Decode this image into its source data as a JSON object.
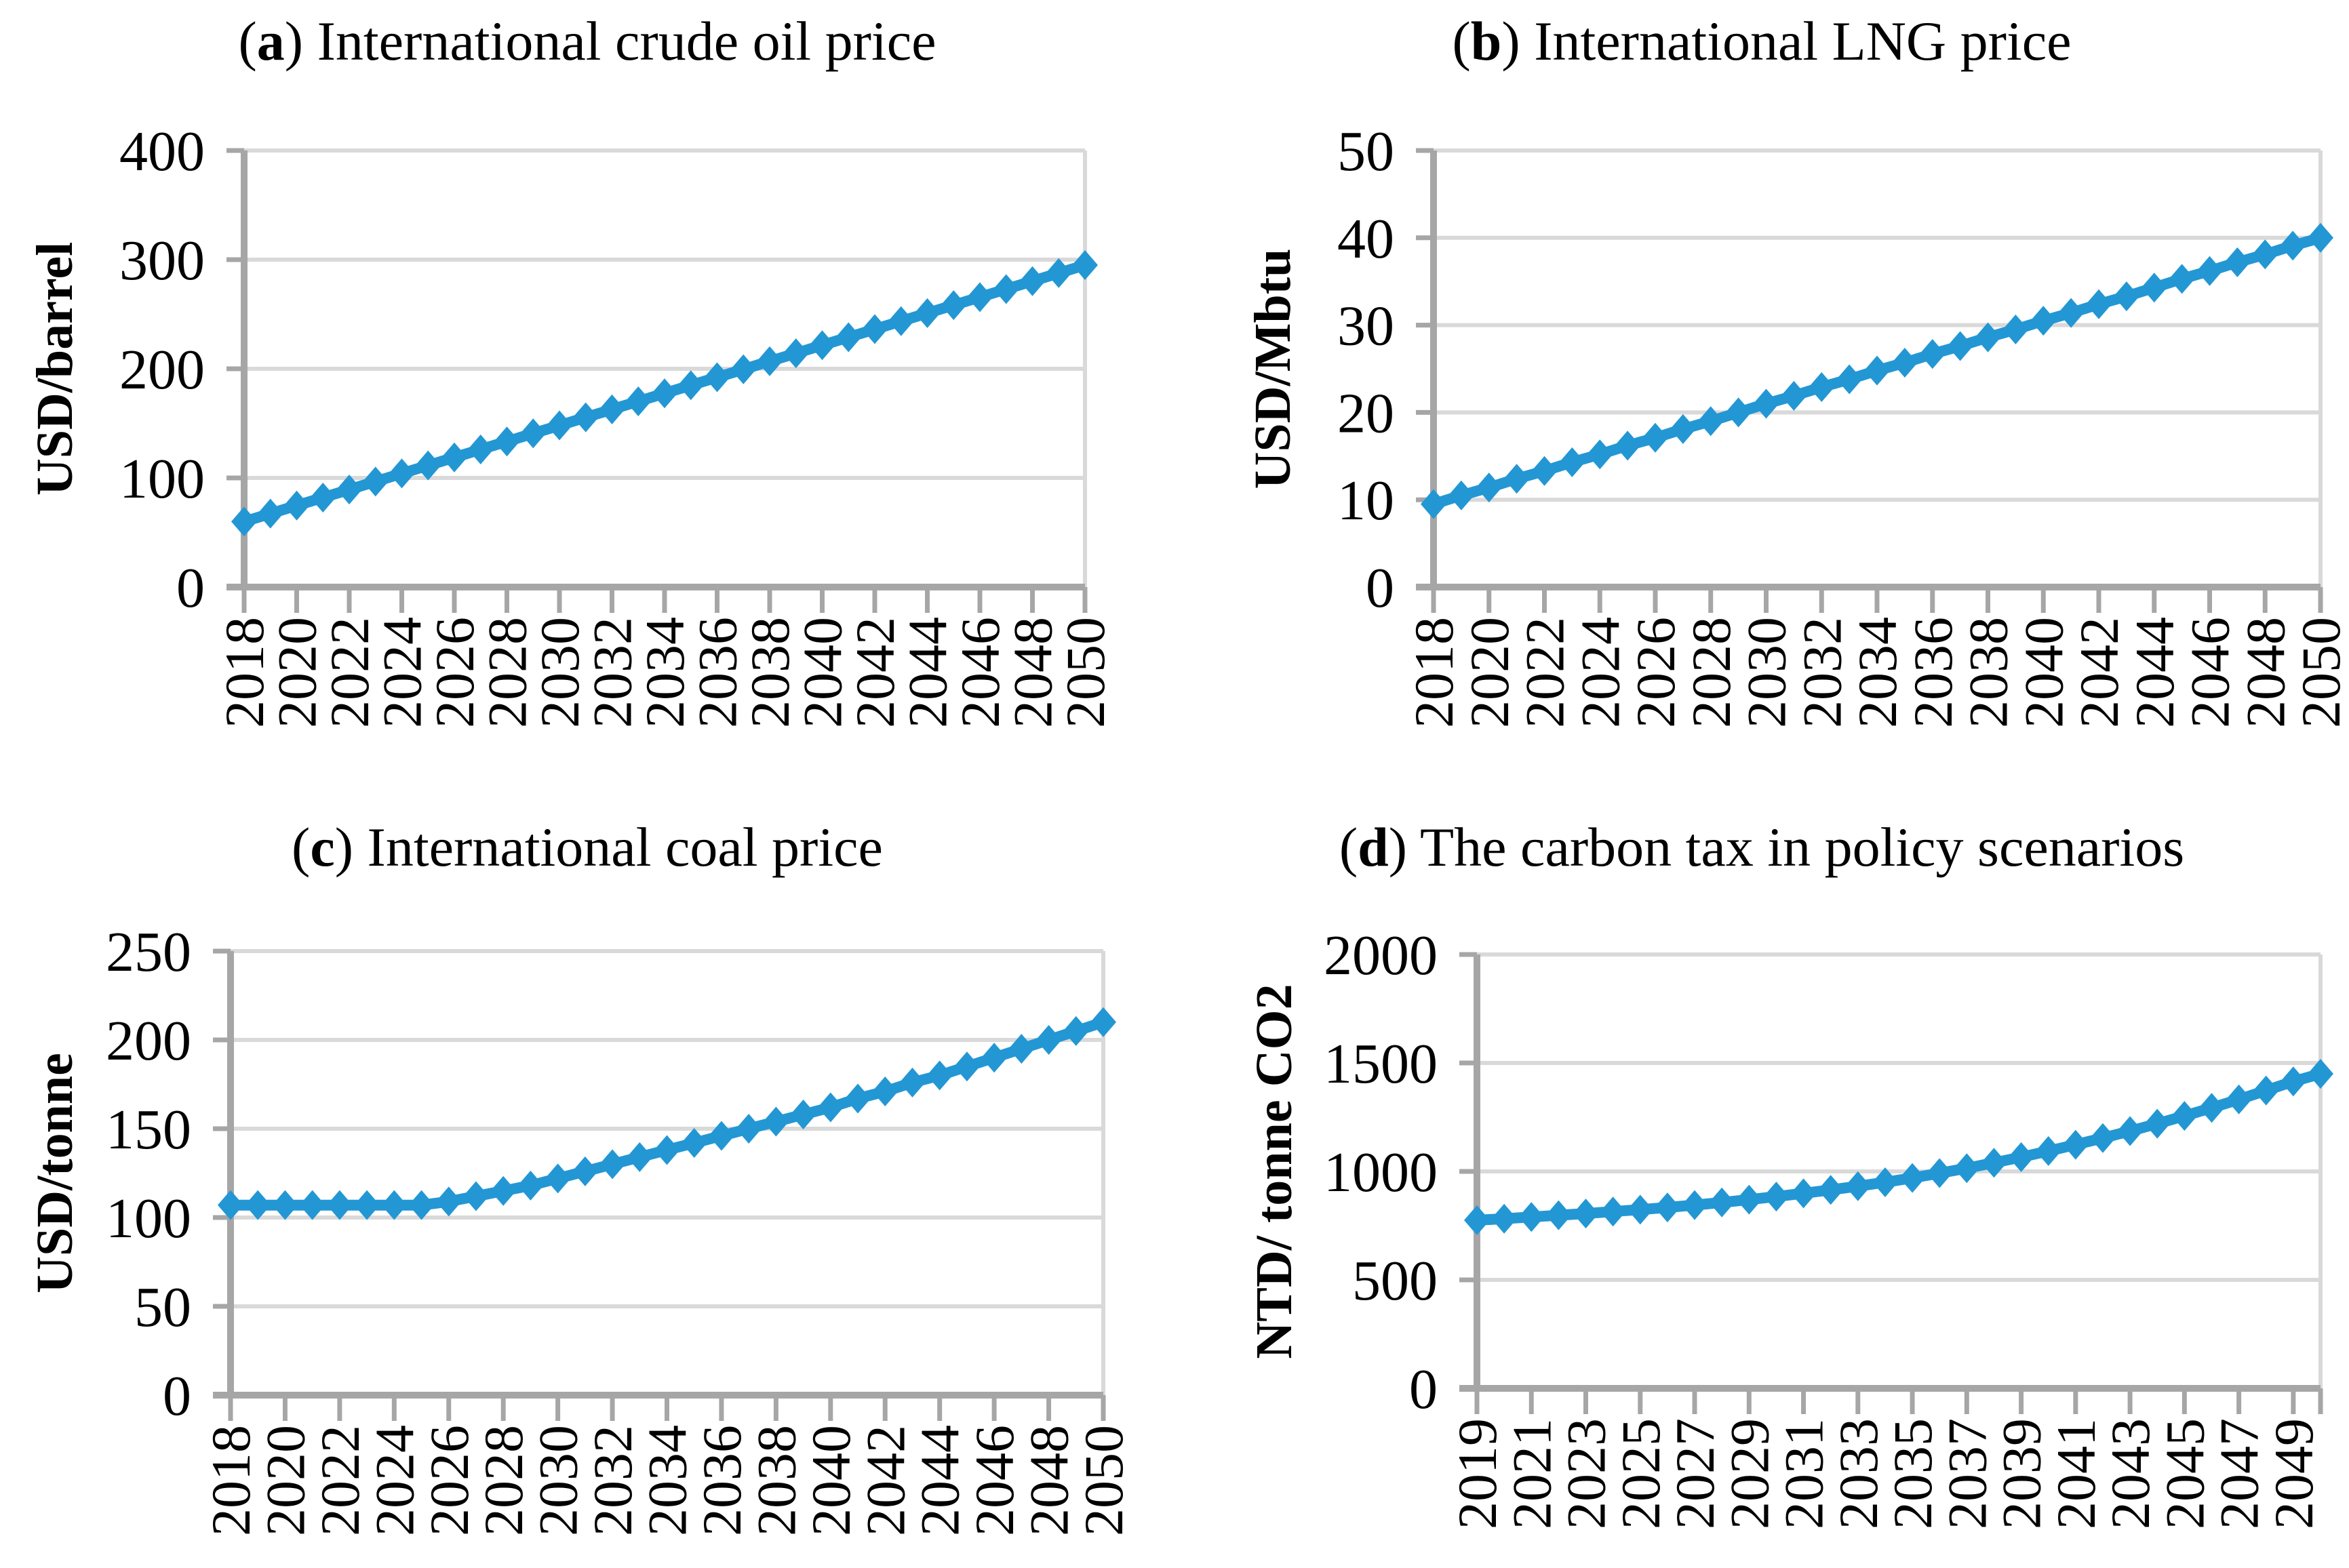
{
  "style": {
    "series_color": "#2397D4",
    "grid_color": "#D9D9D9",
    "axis_color": "#A6A6A6",
    "text_color": "#000000",
    "background": "#FFFFFF"
  },
  "chart_data": [
    {
      "panel": "a",
      "type": "line",
      "title_prefix": "(",
      "title_letter": "a",
      "title_suffix": ") International crude oil price",
      "ylabel": "USD/barrel",
      "marker": "diamond",
      "grid": "horizontal",
      "legend": "none",
      "ylim": [
        0,
        400
      ],
      "yticks": [
        0,
        100,
        200,
        300,
        400
      ],
      "x": [
        2018,
        2019,
        2020,
        2021,
        2022,
        2023,
        2024,
        2025,
        2026,
        2027,
        2028,
        2029,
        2030,
        2031,
        2032,
        2033,
        2034,
        2035,
        2036,
        2037,
        2038,
        2039,
        2040,
        2041,
        2042,
        2043,
        2044,
        2045,
        2046,
        2047,
        2048,
        2049,
        2050
      ],
      "values": [
        60,
        67.3,
        74.7,
        82,
        89.4,
        96.7,
        104.1,
        111.4,
        118.8,
        126.1,
        133.4,
        140.8,
        148.1,
        155.5,
        162.8,
        170.2,
        177.5,
        184.9,
        192.2,
        199.5,
        206.9,
        214.2,
        221.6,
        228.9,
        236.3,
        243.6,
        251,
        258.3,
        265.6,
        273,
        280.3,
        287.7,
        295
      ],
      "xtick_labels": [
        "2018",
        "2020",
        "2022",
        "2024",
        "2026",
        "2028",
        "2030",
        "2032",
        "2034",
        "2036",
        "2038",
        "2040",
        "2042",
        "2044",
        "2046",
        "2048",
        "2050"
      ]
    },
    {
      "panel": "b",
      "type": "line",
      "title_prefix": "(",
      "title_letter": "b",
      "title_suffix": ") International LNG price",
      "ylabel": "USD/Mbtu",
      "marker": "diamond",
      "grid": "horizontal",
      "legend": "none",
      "ylim": [
        0,
        50
      ],
      "yticks": [
        0,
        10,
        20,
        30,
        40,
        50
      ],
      "x": [
        2018,
        2019,
        2020,
        2021,
        2022,
        2023,
        2024,
        2025,
        2026,
        2027,
        2028,
        2029,
        2030,
        2031,
        2032,
        2033,
        2034,
        2035,
        2036,
        2037,
        2038,
        2039,
        2040,
        2041,
        2042,
        2043,
        2044,
        2045,
        2046,
        2047,
        2048,
        2049,
        2050
      ],
      "values": [
        9.5,
        10.5,
        11.4,
        12.4,
        13.3,
        14.3,
        15.2,
        16.2,
        17.1,
        18.1,
        19,
        20,
        21,
        21.9,
        22.9,
        23.8,
        24.8,
        25.7,
        26.7,
        27.6,
        28.6,
        29.5,
        30.5,
        31.4,
        32.4,
        33.3,
        34.3,
        35.3,
        36.2,
        37.2,
        38.1,
        39.1,
        40
      ],
      "xtick_labels": [
        "2018",
        "2020",
        "2022",
        "2024",
        "2026",
        "2028",
        "2030",
        "2032",
        "2034",
        "2036",
        "2038",
        "2040",
        "2042",
        "2044",
        "2046",
        "2048",
        "2050"
      ]
    },
    {
      "panel": "c",
      "type": "line",
      "title_prefix": "(",
      "title_letter": "c",
      "title_suffix": ") International coal price",
      "ylabel": "USD/tonne",
      "marker": "diamond",
      "grid": "horizontal",
      "legend": "none",
      "ylim": [
        0,
        250
      ],
      "yticks": [
        0,
        50,
        100,
        150,
        200,
        250
      ],
      "x": [
        2018,
        2019,
        2020,
        2021,
        2022,
        2023,
        2024,
        2025,
        2026,
        2027,
        2028,
        2029,
        2030,
        2031,
        2032,
        2033,
        2034,
        2035,
        2036,
        2037,
        2038,
        2039,
        2040,
        2041,
        2042,
        2043,
        2044,
        2045,
        2046,
        2047,
        2048,
        2049,
        2050
      ],
      "values": [
        107,
        107,
        107,
        107,
        107,
        107,
        107,
        107,
        109,
        112,
        115,
        118,
        122,
        126,
        130,
        134,
        138,
        142,
        146,
        150,
        154,
        158,
        162,
        167,
        171,
        176,
        180,
        185,
        190,
        195,
        200,
        205,
        210
      ],
      "xtick_labels": [
        "2018",
        "2020",
        "2022",
        "2024",
        "2026",
        "2028",
        "2030",
        "2032",
        "2034",
        "2036",
        "2038",
        "2040",
        "2042",
        "2044",
        "2046",
        "2048",
        "2050"
      ]
    },
    {
      "panel": "d",
      "type": "line",
      "title_prefix": "(",
      "title_letter": "d",
      "title_suffix": ") The carbon tax in policy scenarios",
      "ylabel": "NTD/ tonne CO2",
      "marker": "diamond",
      "grid": "horizontal",
      "legend": "none",
      "ylim": [
        0,
        2000
      ],
      "yticks": [
        0,
        500,
        1000,
        1500,
        2000
      ],
      "x": [
        2019,
        2020,
        2021,
        2022,
        2023,
        2024,
        2025,
        2026,
        2027,
        2028,
        2029,
        2030,
        2031,
        2032,
        2033,
        2034,
        2035,
        2036,
        2037,
        2038,
        2039,
        2040,
        2041,
        2042,
        2043,
        2044,
        2045,
        2046,
        2047,
        2048,
        2049,
        2050
      ],
      "values": [
        775,
        782,
        790,
        798,
        806,
        815,
        824,
        834,
        845,
        857,
        870,
        884,
        899,
        915,
        932,
        950,
        970,
        992,
        1015,
        1040,
        1066,
        1094,
        1123,
        1154,
        1186,
        1220,
        1256,
        1293,
        1332,
        1373,
        1415,
        1450
      ],
      "xtick_labels": [
        "2019",
        "2021",
        "2023",
        "2025",
        "2027",
        "2029",
        "2031",
        "2033",
        "2035",
        "2037",
        "2039",
        "2041",
        "2043",
        "2045",
        "2047",
        "2049"
      ]
    }
  ]
}
